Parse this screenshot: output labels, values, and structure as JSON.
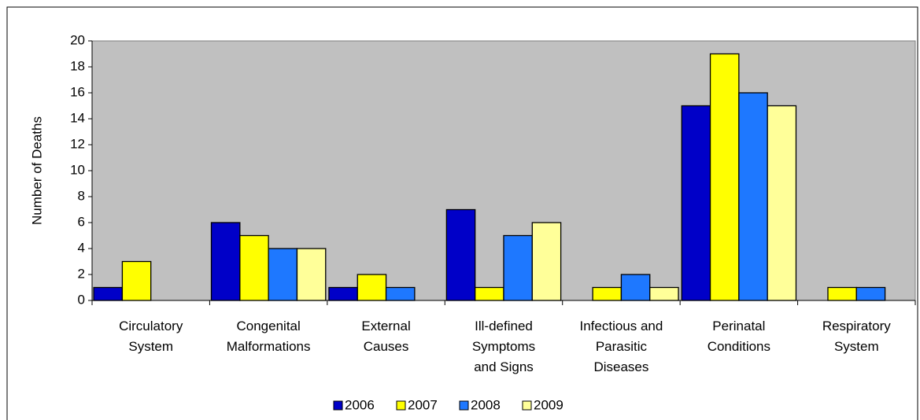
{
  "chart_data": {
    "type": "bar",
    "y_label": "Number of Deaths",
    "categories": [
      "Circulatory\nSystem",
      "Congenital\nMalformations",
      "External\nCauses",
      "Ill-defined\nSymptoms\nand Signs",
      "Infectious and\nParasitic\nDiseases",
      "Perinatal\nConditions",
      "Respiratory\nSystem"
    ],
    "series": [
      {
        "name": "2006",
        "color": "#0000c8",
        "values": [
          1,
          6,
          1,
          7,
          0,
          15,
          0
        ]
      },
      {
        "name": "2007",
        "color": "#ffff00",
        "values": [
          3,
          5,
          2,
          1,
          1,
          19,
          1
        ]
      },
      {
        "name": "2008",
        "color": "#1e78ff",
        "values": [
          0,
          4,
          1,
          5,
          2,
          16,
          1
        ]
      },
      {
        "name": "2009",
        "color": "#ffff99",
        "values": [
          0,
          4,
          0,
          6,
          1,
          15,
          0
        ]
      }
    ],
    "ylim": [
      0,
      20
    ],
    "yticks": [
      0,
      2,
      4,
      6,
      8,
      10,
      12,
      14,
      16,
      18,
      20
    ],
    "plot_background": "#c0c0c0",
    "legend": "bottom"
  }
}
